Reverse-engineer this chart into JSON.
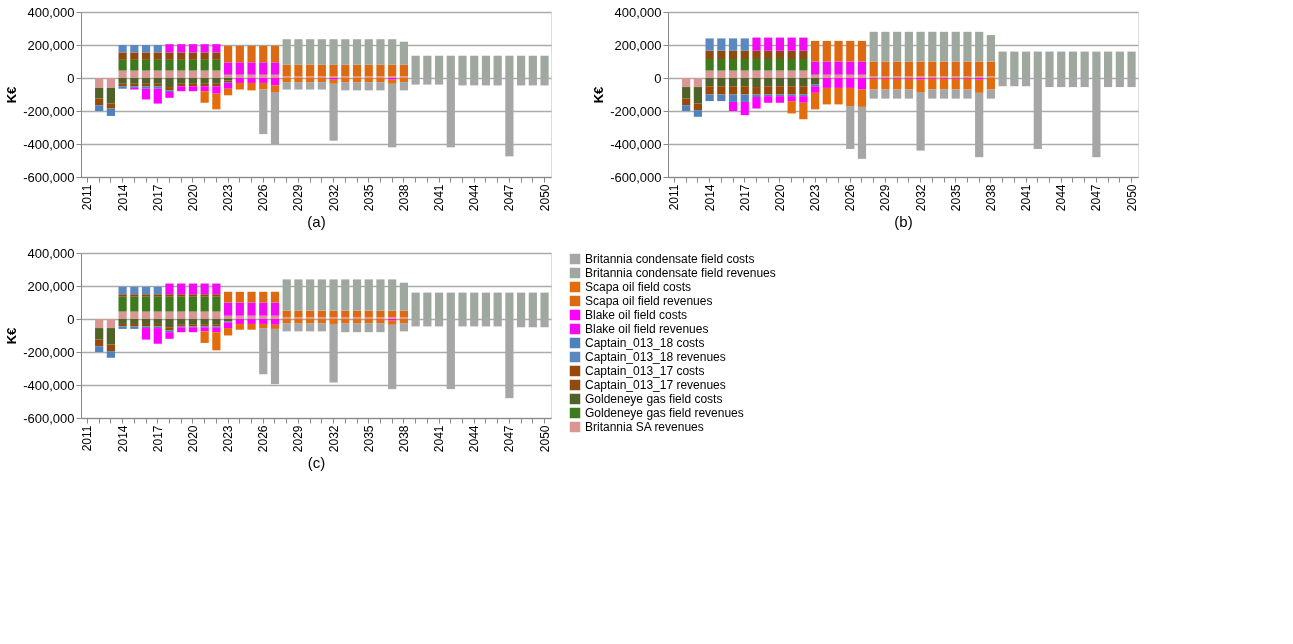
{
  "chart_data": [
    {
      "type": "bar",
      "stacked": true,
      "xlabel": "(a)",
      "ylabel": "K€",
      "grid": "y",
      "legend": false,
      "categories": [
        "2011",
        null,
        null,
        "2014",
        null,
        null,
        "2017",
        null,
        null,
        "2020",
        null,
        null,
        "2023",
        null,
        null,
        "2026",
        null,
        null,
        "2029",
        null,
        null,
        "2032",
        null,
        null,
        "2035",
        null,
        null,
        "2038",
        null,
        null,
        "2041",
        null,
        null,
        "2044",
        null,
        null,
        "2047",
        null,
        null,
        "2050"
      ],
      "ylim": [
        -600000,
        400000
      ],
      "yticks": [
        {
          "value": -600000,
          "label": "-600,000"
        },
        {
          "value": -400000,
          "label": "-400,000"
        },
        {
          "value": -200000,
          "label": "-200,000"
        },
        0,
        {
          "value": 200000,
          "label": "200,000"
        },
        {
          "value": 400000,
          "label": "400,000"
        }
      ],
      "series": [
        {
          "color": "#d99694",
          "values": [
            null,
            -60000,
            -60000,
            45000,
            45000,
            45000,
            45000,
            45000,
            45000,
            45000,
            45000,
            45000,
            20000,
            20000,
            20000,
            20000,
            20000,
            10000,
            10000,
            10000,
            10000,
            10000,
            10000,
            10000,
            10000,
            10000,
            10000,
            10000,
            null,
            null,
            null,
            null,
            null,
            null,
            null,
            null,
            null,
            null,
            null,
            null
          ]
        },
        {
          "color": "#3d7a1e",
          "values": [
            null,
            null,
            null,
            65000,
            65000,
            65000,
            65000,
            65000,
            65000,
            65000,
            65000,
            65000,
            null,
            null,
            null,
            null,
            null,
            null,
            null,
            null,
            null,
            null,
            null,
            null,
            null,
            null,
            null,
            null,
            null,
            null,
            null,
            null,
            null,
            null,
            null,
            null,
            null,
            null,
            null,
            null
          ]
        },
        {
          "color": "#4f6228",
          "values": [
            null,
            -65000,
            -95000,
            -35000,
            -35000,
            -35000,
            -35000,
            -55000,
            -35000,
            -35000,
            -35000,
            -35000,
            -15000,
            null,
            null,
            null,
            null,
            null,
            null,
            null,
            null,
            null,
            null,
            null,
            null,
            null,
            null,
            null,
            null,
            null,
            null,
            null,
            null,
            null,
            null,
            null,
            null,
            null,
            null,
            null
          ]
        },
        {
          "color": "#8f4a10",
          "values": [
            null,
            null,
            null,
            45000,
            45000,
            45000,
            45000,
            45000,
            45000,
            45000,
            45000,
            45000,
            null,
            null,
            null,
            null,
            null,
            null,
            null,
            null,
            null,
            null,
            null,
            null,
            null,
            null,
            null,
            null,
            null,
            null,
            null,
            null,
            null,
            null,
            null,
            null,
            null,
            null,
            null,
            null
          ]
        },
        {
          "color": "#984807",
          "values": [
            null,
            -40000,
            -30000,
            -15000,
            -15000,
            -15000,
            -15000,
            -20000,
            -15000,
            -15000,
            -15000,
            -15000,
            -10000,
            null,
            null,
            null,
            null,
            null,
            null,
            null,
            null,
            null,
            null,
            null,
            null,
            null,
            null,
            null,
            null,
            null,
            null,
            null,
            null,
            null,
            null,
            null,
            null,
            null,
            null,
            null
          ]
        },
        {
          "color": "#5a88c0",
          "values": [
            null,
            null,
            null,
            45000,
            45000,
            45000,
            45000,
            null,
            null,
            null,
            null,
            null,
            null,
            null,
            null,
            null,
            null,
            null,
            null,
            null,
            null,
            null,
            null,
            null,
            null,
            null,
            null,
            null,
            null,
            null,
            null,
            null,
            null,
            null,
            null,
            null,
            null,
            null,
            null,
            null
          ]
        },
        {
          "color": "#4f81bd",
          "values": [
            null,
            -35000,
            -45000,
            -15000,
            -10000,
            -15000,
            -15000,
            -10000,
            null,
            null,
            null,
            null,
            -5000,
            null,
            null,
            null,
            null,
            null,
            null,
            null,
            null,
            null,
            null,
            null,
            null,
            null,
            null,
            null,
            null,
            null,
            null,
            null,
            null,
            null,
            null,
            null,
            null,
            null,
            null,
            null
          ]
        },
        {
          "color": "#f20cf2",
          "values": [
            null,
            null,
            null,
            null,
            null,
            null,
            null,
            50000,
            50000,
            50000,
            50000,
            50000,
            75000,
            75000,
            75000,
            75000,
            75000,
            null,
            null,
            null,
            null,
            null,
            null,
            null,
            null,
            null,
            null,
            null,
            null,
            null,
            null,
            null,
            null,
            null,
            null,
            null,
            null,
            null,
            null,
            null
          ]
        },
        {
          "color": "#ff00ff",
          "values": [
            null,
            null,
            null,
            null,
            -10000,
            -65000,
            -90000,
            -35000,
            -30000,
            -30000,
            -30000,
            -45000,
            -35000,
            -30000,
            -30000,
            -30000,
            -45000,
            null,
            null,
            null,
            null,
            -10000,
            null,
            null,
            null,
            null,
            -10000,
            null,
            null,
            null,
            null,
            null,
            null,
            null,
            null,
            null,
            null,
            null,
            null,
            null
          ]
        },
        {
          "color": "#dd6a12",
          "values": [
            null,
            null,
            null,
            null,
            null,
            null,
            null,
            null,
            null,
            null,
            null,
            null,
            100000,
            100000,
            100000,
            100000,
            100000,
            70000,
            70000,
            70000,
            70000,
            70000,
            70000,
            70000,
            70000,
            70000,
            70000,
            70000,
            null,
            null,
            null,
            null,
            null,
            null,
            null,
            null,
            null,
            null,
            null,
            null
          ]
        },
        {
          "color": "#e46c0a",
          "values": [
            null,
            null,
            null,
            null,
            null,
            null,
            null,
            null,
            null,
            null,
            -70000,
            -95000,
            -40000,
            -40000,
            -45000,
            -40000,
            -40000,
            -25000,
            -25000,
            -25000,
            -25000,
            -25000,
            -25000,
            -25000,
            -25000,
            -25000,
            -25000,
            -25000,
            null,
            null,
            null,
            null,
            null,
            null,
            null,
            null,
            null,
            null,
            null,
            null
          ]
        },
        {
          "color": "#9fa89f",
          "values": [
            null,
            null,
            null,
            null,
            null,
            null,
            null,
            null,
            null,
            null,
            null,
            null,
            null,
            null,
            null,
            null,
            null,
            155000,
            155000,
            155000,
            155000,
            155000,
            155000,
            155000,
            155000,
            155000,
            155000,
            140000,
            135000,
            135000,
            135000,
            135000,
            135000,
            135000,
            135000,
            135000,
            135000,
            135000,
            135000,
            135000
          ]
        },
        {
          "color": "#a6a6a6",
          "values": [
            null,
            null,
            null,
            null,
            null,
            null,
            null,
            null,
            null,
            null,
            null,
            null,
            null,
            null,
            null,
            -270000,
            -315000,
            -45000,
            -45000,
            -45000,
            -45000,
            -345000,
            -50000,
            -50000,
            -50000,
            -50000,
            -385000,
            -50000,
            -40000,
            -40000,
            -40000,
            -420000,
            -45000,
            -45000,
            -45000,
            -45000,
            -475000,
            -45000,
            -45000,
            -45000
          ]
        }
      ]
    },
    {
      "type": "bar",
      "stacked": true,
      "xlabel": "(b)",
      "ylabel": "K€",
      "grid": "y",
      "legend": false,
      "categories": [
        "2011",
        null,
        null,
        "2014",
        null,
        null,
        "2017",
        null,
        null,
        "2020",
        null,
        null,
        "2023",
        null,
        null,
        "2026",
        null,
        null,
        "2029",
        null,
        null,
        "2032",
        null,
        null,
        "2035",
        null,
        null,
        "2038",
        null,
        null,
        "2041",
        null,
        null,
        "2044",
        null,
        null,
        "2047",
        null,
        null,
        "2050"
      ],
      "ylim": [
        -600000,
        400000
      ],
      "yticks": [
        {
          "value": -600000,
          "label": "-600,000"
        },
        {
          "value": -400000,
          "label": "-400,000"
        },
        {
          "value": -200000,
          "label": "-200,000"
        },
        0,
        {
          "value": 200000,
          "label": "200,000"
        },
        {
          "value": 400000,
          "label": "400,000"
        }
      ],
      "series": [
        {
          "color": "#d99694",
          "values": [
            null,
            -55000,
            -55000,
            45000,
            45000,
            45000,
            45000,
            45000,
            45000,
            45000,
            45000,
            45000,
            20000,
            20000,
            20000,
            20000,
            20000,
            10000,
            10000,
            10000,
            10000,
            10000,
            10000,
            10000,
            10000,
            10000,
            10000,
            10000,
            null,
            null,
            null,
            null,
            null,
            null,
            null,
            null,
            null,
            null,
            null,
            null
          ]
        },
        {
          "color": "#3d7a1e",
          "values": [
            null,
            null,
            null,
            70000,
            70000,
            70000,
            70000,
            70000,
            70000,
            70000,
            70000,
            70000,
            null,
            null,
            null,
            null,
            null,
            null,
            null,
            null,
            null,
            null,
            null,
            null,
            null,
            null,
            null,
            null,
            null,
            null,
            null,
            null,
            null,
            null,
            null,
            null,
            null,
            null,
            null,
            null
          ]
        },
        {
          "color": "#4f6228",
          "values": [
            null,
            -70000,
            -100000,
            -50000,
            -50000,
            -50000,
            -50000,
            -55000,
            -50000,
            -50000,
            -50000,
            -50000,
            -40000,
            null,
            null,
            null,
            null,
            null,
            null,
            null,
            null,
            null,
            null,
            null,
            null,
            null,
            null,
            null,
            null,
            null,
            null,
            null,
            null,
            null,
            null,
            null,
            null,
            null,
            null,
            null
          ]
        },
        {
          "color": "#8f4a10",
          "values": [
            null,
            null,
            null,
            50000,
            50000,
            50000,
            50000,
            50000,
            50000,
            50000,
            50000,
            50000,
            null,
            null,
            null,
            null,
            null,
            null,
            null,
            null,
            null,
            null,
            null,
            null,
            null,
            null,
            null,
            null,
            null,
            null,
            null,
            null,
            null,
            null,
            null,
            null,
            null,
            null,
            null,
            null
          ]
        },
        {
          "color": "#984807",
          "values": [
            null,
            -40000,
            -40000,
            -50000,
            -50000,
            -50000,
            -50000,
            -45000,
            -50000,
            -50000,
            -50000,
            -50000,
            null,
            null,
            null,
            null,
            null,
            null,
            null,
            null,
            null,
            null,
            null,
            null,
            null,
            null,
            null,
            null,
            null,
            null,
            null,
            null,
            null,
            null,
            null,
            null,
            null,
            null,
            null,
            null
          ]
        },
        {
          "color": "#5a88c0",
          "values": [
            null,
            null,
            null,
            75000,
            75000,
            75000,
            75000,
            null,
            null,
            null,
            null,
            null,
            null,
            null,
            null,
            null,
            null,
            null,
            null,
            null,
            null,
            null,
            null,
            null,
            null,
            null,
            null,
            null,
            null,
            null,
            null,
            null,
            null,
            null,
            null,
            null,
            null,
            null,
            null,
            null
          ]
        },
        {
          "color": "#4f81bd",
          "values": [
            null,
            -35000,
            -40000,
            -40000,
            -40000,
            -45000,
            -45000,
            -15000,
            -10000,
            -10000,
            -10000,
            -10000,
            -10000,
            null,
            null,
            null,
            null,
            null,
            null,
            null,
            null,
            null,
            null,
            null,
            null,
            null,
            null,
            null,
            null,
            null,
            null,
            null,
            null,
            null,
            null,
            null,
            null,
            null,
            null,
            null
          ]
        },
        {
          "color": "#f20cf2",
          "values": [
            null,
            null,
            null,
            null,
            null,
            null,
            null,
            80000,
            80000,
            80000,
            80000,
            80000,
            80000,
            80000,
            80000,
            80000,
            80000,
            null,
            null,
            null,
            null,
            null,
            null,
            null,
            null,
            null,
            null,
            null,
            null,
            null,
            null,
            null,
            null,
            null,
            null,
            null,
            null,
            null,
            null,
            null
          ]
        },
        {
          "color": "#ff00ff",
          "values": [
            null,
            null,
            null,
            null,
            null,
            -55000,
            -80000,
            -70000,
            -40000,
            -40000,
            -30000,
            -40000,
            -40000,
            -60000,
            -60000,
            -60000,
            -70000,
            -5000,
            -5000,
            -5000,
            -5000,
            -10000,
            -5000,
            -5000,
            -5000,
            -5000,
            -10000,
            null,
            null,
            null,
            null,
            null,
            null,
            null,
            null,
            null,
            null,
            null,
            null,
            null
          ]
        },
        {
          "color": "#dd6a12",
          "values": [
            null,
            null,
            null,
            null,
            null,
            null,
            null,
            null,
            null,
            null,
            null,
            null,
            125000,
            125000,
            125000,
            125000,
            125000,
            90000,
            90000,
            90000,
            90000,
            90000,
            90000,
            90000,
            90000,
            90000,
            90000,
            90000,
            null,
            null,
            null,
            null,
            null,
            null,
            null,
            null,
            null,
            null,
            null,
            null
          ]
        },
        {
          "color": "#e46c0a",
          "values": [
            null,
            null,
            null,
            null,
            null,
            null,
            null,
            null,
            null,
            null,
            -75000,
            -100000,
            -100000,
            -100000,
            -100000,
            -110000,
            -105000,
            -65000,
            -65000,
            -65000,
            -65000,
            -75000,
            -65000,
            -65000,
            -65000,
            -65000,
            -80000,
            -70000,
            null,
            null,
            null,
            null,
            null,
            null,
            null,
            null,
            null,
            null,
            null,
            null
          ]
        },
        {
          "color": "#9fa89f",
          "values": [
            null,
            null,
            null,
            null,
            null,
            null,
            null,
            null,
            null,
            null,
            null,
            null,
            null,
            null,
            null,
            null,
            null,
            180000,
            180000,
            180000,
            180000,
            180000,
            180000,
            180000,
            180000,
            180000,
            180000,
            160000,
            160000,
            160000,
            160000,
            160000,
            160000,
            160000,
            160000,
            160000,
            160000,
            160000,
            160000,
            160000
          ]
        },
        {
          "color": "#a6a6a6",
          "values": [
            null,
            null,
            null,
            null,
            null,
            null,
            null,
            null,
            null,
            null,
            null,
            null,
            null,
            null,
            null,
            -260000,
            -315000,
            -55000,
            -55000,
            -55000,
            -55000,
            -355000,
            -55000,
            -55000,
            -55000,
            -55000,
            -390000,
            -55000,
            -50000,
            -50000,
            -50000,
            -430000,
            -55000,
            -55000,
            -55000,
            -55000,
            -480000,
            -55000,
            -55000,
            -55000
          ]
        }
      ]
    },
    {
      "type": "bar",
      "stacked": true,
      "xlabel": "(c)",
      "ylabel": "K€",
      "grid": "y",
      "legend": "right",
      "categories": [
        "2011",
        null,
        null,
        "2014",
        null,
        null,
        "2017",
        null,
        null,
        "2020",
        null,
        null,
        "2023",
        null,
        null,
        "2026",
        null,
        null,
        "2029",
        null,
        null,
        "2032",
        null,
        null,
        "2035",
        null,
        null,
        "2038",
        null,
        null,
        "2041",
        null,
        null,
        "2044",
        null,
        null,
        "2047",
        null,
        null,
        "2050"
      ],
      "ylim": [
        -600000,
        400000
      ],
      "yticks": [
        {
          "value": -600000,
          "label": "-600,000"
        },
        {
          "value": -400000,
          "label": "-400,000"
        },
        {
          "value": -200000,
          "label": "-200,000"
        },
        0,
        {
          "value": 200000,
          "label": "200,000"
        },
        {
          "value": 400000,
          "label": "400,000"
        }
      ],
      "series": [
        {
          "name": "Britannia SA revenues",
          "color": "#d99694",
          "values": [
            null,
            -55000,
            -55000,
            45000,
            45000,
            45000,
            45000,
            45000,
            45000,
            45000,
            45000,
            45000,
            20000,
            20000,
            20000,
            20000,
            20000,
            10000,
            10000,
            10000,
            10000,
            10000,
            10000,
            10000,
            10000,
            10000,
            10000,
            10000,
            null,
            null,
            null,
            null,
            null,
            null,
            null,
            null,
            null,
            null,
            null,
            null
          ]
        },
        {
          "name": "Goldeneye gas field revenues",
          "color": "#3d7a1e",
          "values": [
            null,
            null,
            null,
            90000,
            90000,
            90000,
            90000,
            90000,
            90000,
            90000,
            90000,
            90000,
            null,
            null,
            null,
            null,
            null,
            null,
            null,
            null,
            null,
            null,
            null,
            null,
            null,
            null,
            null,
            null,
            null,
            null,
            null,
            null,
            null,
            null,
            null,
            null,
            null,
            null,
            null,
            null
          ]
        },
        {
          "name": "Goldeneye gas field costs",
          "color": "#4f6228",
          "values": [
            null,
            -70000,
            -100000,
            -30000,
            -30000,
            -30000,
            -30000,
            -50000,
            -35000,
            -35000,
            -35000,
            -35000,
            -15000,
            null,
            null,
            null,
            null,
            null,
            null,
            null,
            null,
            null,
            null,
            null,
            null,
            null,
            null,
            null,
            null,
            null,
            null,
            null,
            null,
            null,
            null,
            null,
            null,
            null,
            null,
            null
          ]
        },
        {
          "name": "Captain_013_17 revenues",
          "color": "#8f4a10",
          "values": [
            null,
            null,
            null,
            15000,
            15000,
            15000,
            15000,
            15000,
            15000,
            15000,
            15000,
            15000,
            null,
            null,
            null,
            null,
            null,
            null,
            null,
            null,
            null,
            null,
            null,
            null,
            null,
            null,
            null,
            null,
            null,
            null,
            null,
            null,
            null,
            null,
            null,
            null,
            null,
            null,
            null,
            null
          ]
        },
        {
          "name": "Captain_013_17 costs",
          "color": "#984807",
          "values": [
            null,
            -40000,
            -40000,
            -15000,
            -15000,
            -15000,
            -15000,
            -20000,
            -10000,
            -10000,
            -10000,
            -10000,
            null,
            null,
            null,
            null,
            null,
            null,
            null,
            null,
            null,
            null,
            null,
            null,
            null,
            null,
            null,
            null,
            null,
            null,
            null,
            null,
            null,
            null,
            null,
            null,
            null,
            null,
            null,
            null
          ]
        },
        {
          "name": "Captain_013_18 revenues",
          "color": "#5a88c0",
          "values": [
            null,
            null,
            null,
            45000,
            45000,
            45000,
            45000,
            null,
            null,
            null,
            null,
            null,
            null,
            null,
            null,
            null,
            null,
            null,
            null,
            null,
            null,
            null,
            null,
            null,
            null,
            null,
            null,
            null,
            null,
            null,
            null,
            null,
            null,
            null,
            null,
            null,
            null,
            null,
            null,
            null
          ]
        },
        {
          "name": "Captain_013_18 costs",
          "color": "#4f81bd",
          "values": [
            null,
            -35000,
            -40000,
            -15000,
            -15000,
            -10000,
            -10000,
            -10000,
            -5000,
            -5000,
            -5000,
            -5000,
            -5000,
            null,
            null,
            null,
            null,
            null,
            null,
            null,
            null,
            null,
            null,
            null,
            null,
            null,
            null,
            null,
            null,
            null,
            null,
            null,
            null,
            null,
            null,
            null,
            null,
            null,
            null,
            null
          ]
        },
        {
          "name": "Blake oil field revenues",
          "color": "#f20cf2",
          "values": [
            null,
            null,
            null,
            null,
            null,
            null,
            null,
            65000,
            65000,
            65000,
            65000,
            65000,
            80000,
            80000,
            80000,
            80000,
            80000,
            null,
            null,
            null,
            null,
            null,
            null,
            null,
            null,
            null,
            null,
            null,
            null,
            null,
            null,
            null,
            null,
            null,
            null,
            null,
            null,
            null,
            null,
            null
          ]
        },
        {
          "name": "Blake oil field costs",
          "color": "#ff00ff",
          "values": [
            null,
            null,
            null,
            null,
            null,
            -70000,
            -95000,
            -40000,
            -30000,
            -30000,
            -25000,
            -30000,
            -35000,
            -30000,
            -30000,
            -30000,
            -35000,
            null,
            null,
            null,
            null,
            null,
            null,
            null,
            null,
            null,
            -10000,
            null,
            null,
            null,
            null,
            null,
            null,
            null,
            null,
            null,
            null,
            null,
            null,
            null
          ]
        },
        {
          "name": "Scapa oil field revenues",
          "color": "#dd6a12",
          "values": [
            null,
            null,
            null,
            null,
            null,
            null,
            null,
            null,
            null,
            null,
            null,
            null,
            65000,
            65000,
            65000,
            65000,
            65000,
            40000,
            40000,
            40000,
            40000,
            40000,
            40000,
            40000,
            40000,
            40000,
            40000,
            40000,
            null,
            null,
            null,
            null,
            null,
            null,
            null,
            null,
            null,
            null,
            null,
            null
          ]
        },
        {
          "name": "Scapa oil field costs",
          "color": "#e46c0a",
          "values": [
            null,
            null,
            null,
            null,
            null,
            null,
            null,
            null,
            null,
            null,
            -70000,
            -110000,
            -45000,
            -35000,
            -35000,
            -25000,
            -25000,
            -25000,
            -25000,
            -25000,
            -25000,
            -30000,
            -25000,
            -25000,
            -25000,
            -25000,
            -25000,
            -25000,
            null,
            null,
            null,
            null,
            null,
            null,
            null,
            null,
            null,
            null,
            null,
            null
          ]
        },
        {
          "name": "Britannia condensate field revenues",
          "color": "#9fa89f",
          "values": [
            null,
            null,
            null,
            null,
            null,
            null,
            null,
            null,
            null,
            null,
            null,
            null,
            null,
            null,
            null,
            null,
            null,
            190000,
            190000,
            190000,
            190000,
            190000,
            190000,
            190000,
            190000,
            190000,
            190000,
            170000,
            160000,
            160000,
            160000,
            160000,
            160000,
            160000,
            160000,
            160000,
            160000,
            160000,
            160000,
            160000
          ]
        },
        {
          "name": "Britannia condensate field costs",
          "color": "#a6a6a6",
          "values": [
            null,
            null,
            null,
            null,
            null,
            null,
            null,
            null,
            null,
            null,
            null,
            null,
            null,
            null,
            null,
            -280000,
            -335000,
            -50000,
            -50000,
            -50000,
            -50000,
            -355000,
            -55000,
            -55000,
            -55000,
            -55000,
            -390000,
            -50000,
            -45000,
            -45000,
            -45000,
            -425000,
            -45000,
            -45000,
            -45000,
            -45000,
            -480000,
            -50000,
            -50000,
            -50000
          ]
        }
      ]
    }
  ]
}
